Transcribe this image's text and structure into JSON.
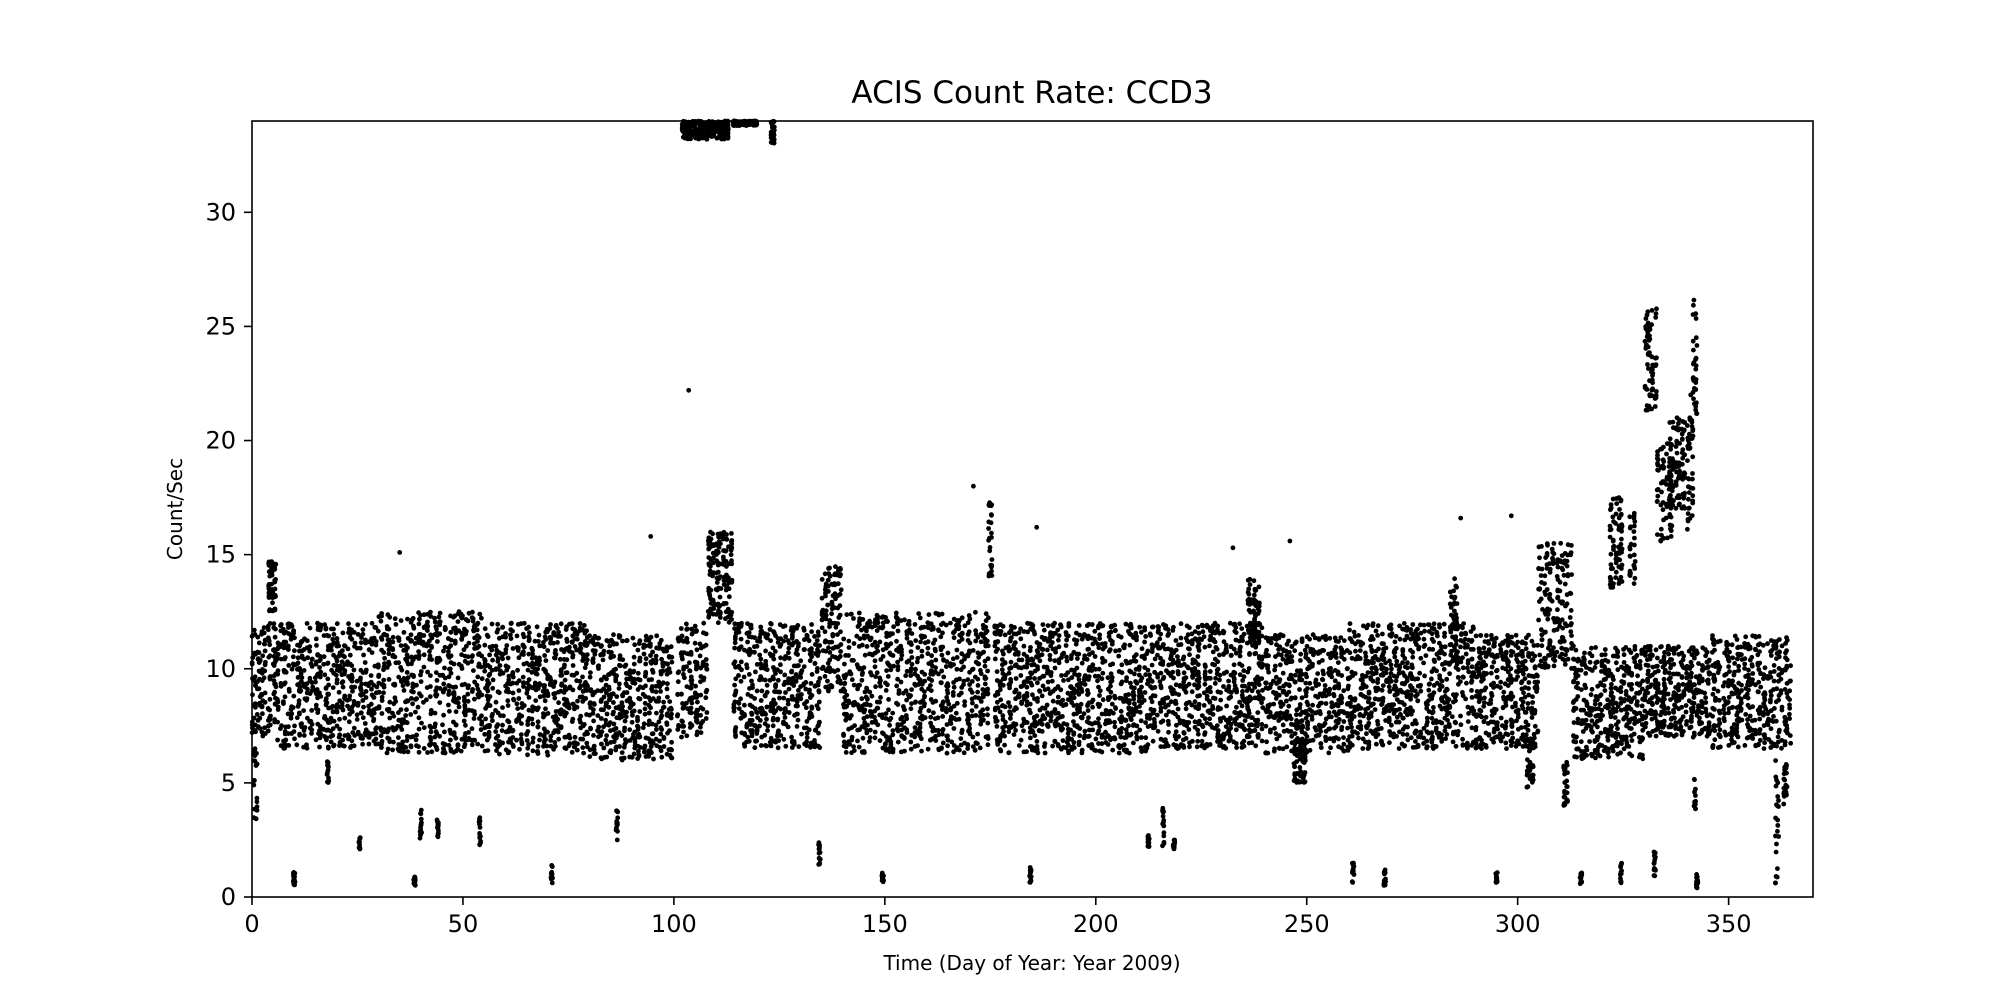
{
  "chart_data": {
    "type": "scatter",
    "title": "ACIS Count Rate: CCD3",
    "xlabel": "Time (Day of Year: Year 2009)",
    "ylabel": "Count/Sec",
    "xlim": [
      0,
      370
    ],
    "ylim": [
      0,
      34
    ],
    "xticks": [
      0,
      50,
      100,
      150,
      200,
      250,
      300,
      350
    ],
    "yticks": [
      0,
      5,
      10,
      15,
      20,
      25,
      30
    ],
    "grid": false,
    "legend": "none",
    "marker_color": "#000000",
    "clusters": [
      {
        "x": [
          0,
          6
        ],
        "y": [
          7,
          12
        ]
      },
      {
        "x": [
          0.5,
          1.5
        ],
        "y": [
          3.4,
          6.5
        ]
      },
      {
        "x": [
          4,
          6
        ],
        "y": [
          12.5,
          14.7
        ]
      },
      {
        "x": [
          6,
          30
        ],
        "y": [
          6.5,
          12
        ]
      },
      {
        "x": [
          30,
          55
        ],
        "y": [
          6.3,
          12.5
        ]
      },
      {
        "x": [
          55,
          80
        ],
        "y": [
          6.2,
          12
        ]
      },
      {
        "x": [
          80,
          100
        ],
        "y": [
          6,
          11.5
        ]
      },
      {
        "x": [
          101,
          108
        ],
        "y": [
          7,
          12
        ]
      },
      {
        "x": [
          108,
          114
        ],
        "y": [
          12,
          16
        ]
      },
      {
        "x": [
          114,
          135
        ],
        "y": [
          6.5,
          12
        ]
      },
      {
        "x": [
          135,
          140
        ],
        "y": [
          9,
          14.5
        ]
      },
      {
        "x": [
          140,
          175
        ],
        "y": [
          6.3,
          12.5
        ]
      },
      {
        "x": [
          174.5,
          176
        ],
        "y": [
          14,
          17.5
        ]
      },
      {
        "x": [
          176,
          212
        ],
        "y": [
          6.3,
          12
        ]
      },
      {
        "x": [
          212,
          240
        ],
        "y": [
          6.5,
          12
        ]
      },
      {
        "x": [
          236,
          239
        ],
        "y": [
          11,
          14
        ]
      },
      {
        "x": [
          240,
          260
        ],
        "y": [
          6.3,
          11.5
        ]
      },
      {
        "x": [
          247,
          250
        ],
        "y": [
          5,
          7
        ]
      },
      {
        "x": [
          260,
          290
        ],
        "y": [
          6.5,
          12
        ]
      },
      {
        "x": [
          284,
          286
        ],
        "y": [
          10,
          14
        ]
      },
      {
        "x": [
          290,
          305
        ],
        "y": [
          6.5,
          11.5
        ]
      },
      {
        "x": [
          302,
          304
        ],
        "y": [
          4.8,
          7
        ]
      },
      {
        "x": [
          305,
          313
        ],
        "y": [
          10,
          15.5
        ]
      },
      {
        "x": [
          311,
          312
        ],
        "y": [
          4,
          6
        ]
      },
      {
        "x": [
          313,
          330
        ],
        "y": [
          6,
          11
        ]
      },
      {
        "x": [
          322,
          325
        ],
        "y": [
          13.5,
          17.5
        ]
      },
      {
        "x": [
          326.5,
          328
        ],
        "y": [
          13.5,
          17
        ]
      },
      {
        "x": [
          330,
          333
        ],
        "y": [
          21.3,
          25.8
        ]
      },
      {
        "x": [
          333,
          337
        ],
        "y": [
          15.5,
          20
        ]
      },
      {
        "x": [
          336,
          340
        ],
        "y": [
          17,
          21
        ]
      },
      {
        "x": [
          340,
          342
        ],
        "y": [
          15.8,
          21
        ]
      },
      {
        "x": [
          341.5,
          343
        ],
        "y": [
          21,
          26.2
        ]
      },
      {
        "x": [
          330,
          346
        ],
        "y": [
          7,
          11
        ]
      },
      {
        "x": [
          346,
          365
        ],
        "y": [
          6.5,
          11.5
        ]
      },
      {
        "x": [
          361,
          362
        ],
        "y": [
          0.5,
          6
        ]
      },
      {
        "x": [
          363,
          364
        ],
        "y": [
          4,
          6
        ]
      },
      {
        "x": [
          102,
          113
        ],
        "y": [
          33.2,
          34
        ]
      },
      {
        "x": [
          114,
          120
        ],
        "y": [
          33.8,
          34
        ]
      },
      {
        "x": [
          123,
          124
        ],
        "y": [
          33,
          34
        ]
      }
    ],
    "low_clusters": [
      {
        "x": 10,
        "y": [
          0.5,
          1.2
        ]
      },
      {
        "x": 18,
        "y": [
          5,
          6
        ]
      },
      {
        "x": 25.5,
        "y": [
          2.1,
          2.6
        ]
      },
      {
        "x": 38.5,
        "y": [
          0.5,
          1
        ]
      },
      {
        "x": 40,
        "y": [
          2.5,
          4
        ]
      },
      {
        "x": 44,
        "y": [
          2.6,
          3.5
        ]
      },
      {
        "x": 54,
        "y": [
          2.2,
          3.5
        ]
      },
      {
        "x": 71,
        "y": [
          0.6,
          1.4
        ]
      },
      {
        "x": 86.5,
        "y": [
          2.5,
          3.9
        ]
      },
      {
        "x": 134.5,
        "y": [
          1.3,
          2.4
        ]
      },
      {
        "x": 149.5,
        "y": [
          0.6,
          1.1
        ]
      },
      {
        "x": 184.5,
        "y": [
          0.6,
          1.3
        ]
      },
      {
        "x": 212.5,
        "y": [
          2.2,
          2.7
        ]
      },
      {
        "x": 216,
        "y": [
          2.2,
          4
        ]
      },
      {
        "x": 218.5,
        "y": [
          2.1,
          2.5
        ]
      },
      {
        "x": 261,
        "y": [
          0.5,
          1.5
        ]
      },
      {
        "x": 268.5,
        "y": [
          0.5,
          1.2
        ]
      },
      {
        "x": 295,
        "y": [
          0.6,
          1.2
        ]
      },
      {
        "x": 315,
        "y": [
          0.5,
          1.1
        ]
      },
      {
        "x": 324.5,
        "y": [
          0.6,
          1.5
        ]
      },
      {
        "x": 332.5,
        "y": [
          0.8,
          2
        ]
      },
      {
        "x": 342.5,
        "y": [
          0.4,
          1
        ]
      },
      {
        "x": 342,
        "y": [
          3.8,
          5.3
        ]
      }
    ],
    "outliers": [
      {
        "x": 103.5,
        "y": 22.2
      },
      {
        "x": 94.5,
        "y": 15.8
      },
      {
        "x": 171,
        "y": 18
      },
      {
        "x": 186,
        "y": 16.2
      },
      {
        "x": 246,
        "y": 15.6
      },
      {
        "x": 286.5,
        "y": 16.6
      },
      {
        "x": 298.5,
        "y": 16.7
      },
      {
        "x": 232.5,
        "y": 15.3
      },
      {
        "x": 35,
        "y": 15.1
      },
      {
        "x": 341,
        "y": 22
      }
    ]
  }
}
